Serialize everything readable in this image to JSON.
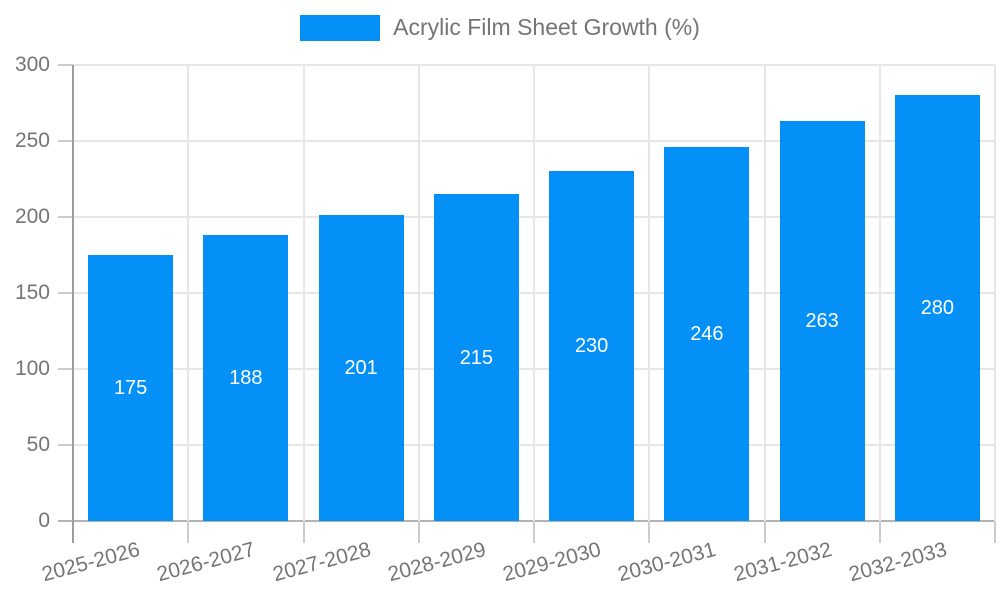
{
  "chart_data": {
    "type": "bar",
    "categories": [
      "2025-2026",
      "2026-2027",
      "2027-2028",
      "2028-2029",
      "2029-2030",
      "2030-2031",
      "2031-2032",
      "2032-2033"
    ],
    "series": [
      {
        "name": "Acrylic Film Sheet Growth (%)",
        "values": [
          175,
          188,
          201,
          215,
          230,
          246,
          263,
          280
        ]
      }
    ],
    "ylim": [
      0,
      300
    ],
    "yticks": [
      0,
      50,
      100,
      150,
      200,
      250,
      300
    ],
    "grid": true,
    "legend_position": "top",
    "colors": {
      "bar": "#0590f8",
      "bar_label": "#ffffff",
      "axis_text": "#757575",
      "gridline": "#e6e6e6",
      "y_axis_line": "#9e9e9e",
      "x_axis_line": "#b3b3b3",
      "tick": "#cccccc",
      "background": "#ffffff"
    }
  }
}
